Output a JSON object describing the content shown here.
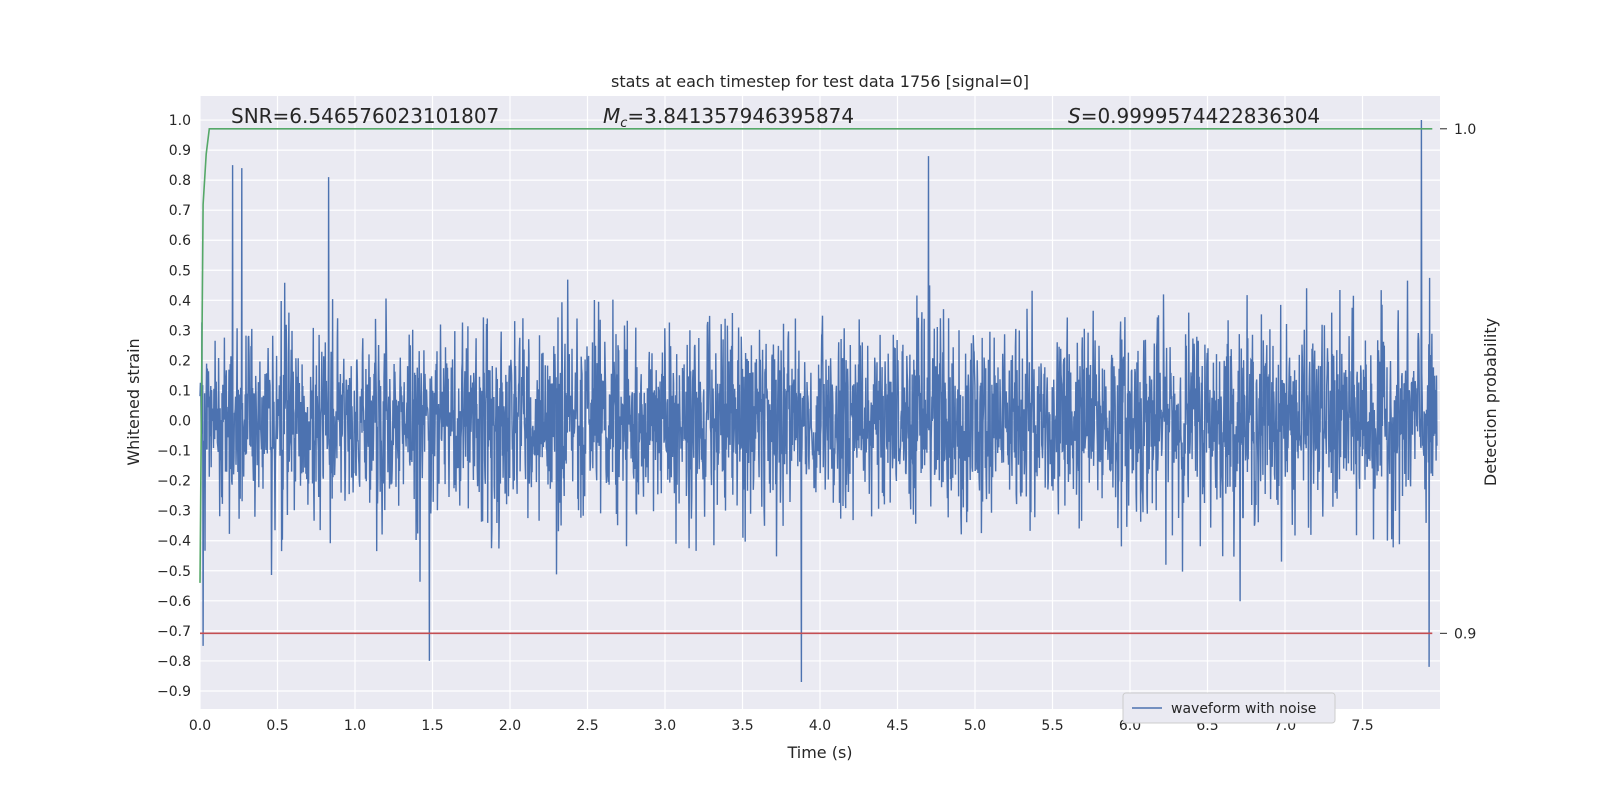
{
  "chart_data": {
    "type": "line",
    "title": "stats at each timestep for test data 1756 [signal=0]",
    "xlabel": "Time (s)",
    "ylabel": "Whitened strain",
    "ylabel_right": "Detection probability",
    "xlim": [
      0.0,
      8.0
    ],
    "ylim": [
      -0.96,
      1.08
    ],
    "ylim_right": [
      0.885,
      1.0065
    ],
    "x_ticks": [
      "0.0",
      "0.5",
      "1.0",
      "1.5",
      "2.0",
      "2.5",
      "3.0",
      "3.5",
      "4.0",
      "4.5",
      "5.0",
      "5.5",
      "6.0",
      "6.5",
      "7.0",
      "7.5"
    ],
    "y_ticks": [
      "1.0",
      "0.9",
      "0.8",
      "0.7",
      "0.6",
      "0.5",
      "0.4",
      "0.3",
      "0.2",
      "0.1",
      "0.0",
      "−0.1",
      "−0.2",
      "−0.3",
      "−0.4",
      "−0.5",
      "−0.6",
      "−0.7",
      "−0.8",
      "−0.9"
    ],
    "y_ticks_right": [
      "1.0",
      "0.9"
    ],
    "grid": true,
    "legend_position": "lower-right",
    "stats": {
      "snr": "SNR=6.546576023101807",
      "mc_symbol": "M",
      "mc_subscript": "c",
      "mc_value": "=3.841357946395874",
      "s_symbol": "S",
      "s_value": "=0.9999574422836304"
    },
    "series": [
      {
        "name": "waveform with noise",
        "axis": "left",
        "color": "#4c72b0",
        "description_values": "dense noise, amplitude mostly within ±0.4 with spikes up to 1.0 and down to -0.87",
        "peaks": [
          {
            "x": 0.21,
            "y": 0.85
          },
          {
            "x": 0.27,
            "y": 0.84
          },
          {
            "x": 0.83,
            "y": 0.81
          },
          {
            "x": 1.48,
            "y": -0.8
          },
          {
            "x": 3.88,
            "y": -0.87
          },
          {
            "x": 4.7,
            "y": 0.88
          },
          {
            "x": 7.88,
            "y": 1.0
          },
          {
            "x": 7.93,
            "y": -0.82
          },
          {
            "x": 0.02,
            "y": -0.75
          }
        ]
      },
      {
        "name": "",
        "axis": "right",
        "color": "#55a868",
        "x": [
          0.0,
          0.02,
          0.04,
          0.06,
          0.08,
          7.95
        ],
        "y": [
          0.91,
          0.985,
          0.995,
          1.0,
          1.0,
          1.0
        ]
      },
      {
        "name": "",
        "axis": "right",
        "color": "#c44e52",
        "x": [
          0.0,
          7.95
        ],
        "y": [
          0.9,
          0.9
        ]
      }
    ]
  }
}
